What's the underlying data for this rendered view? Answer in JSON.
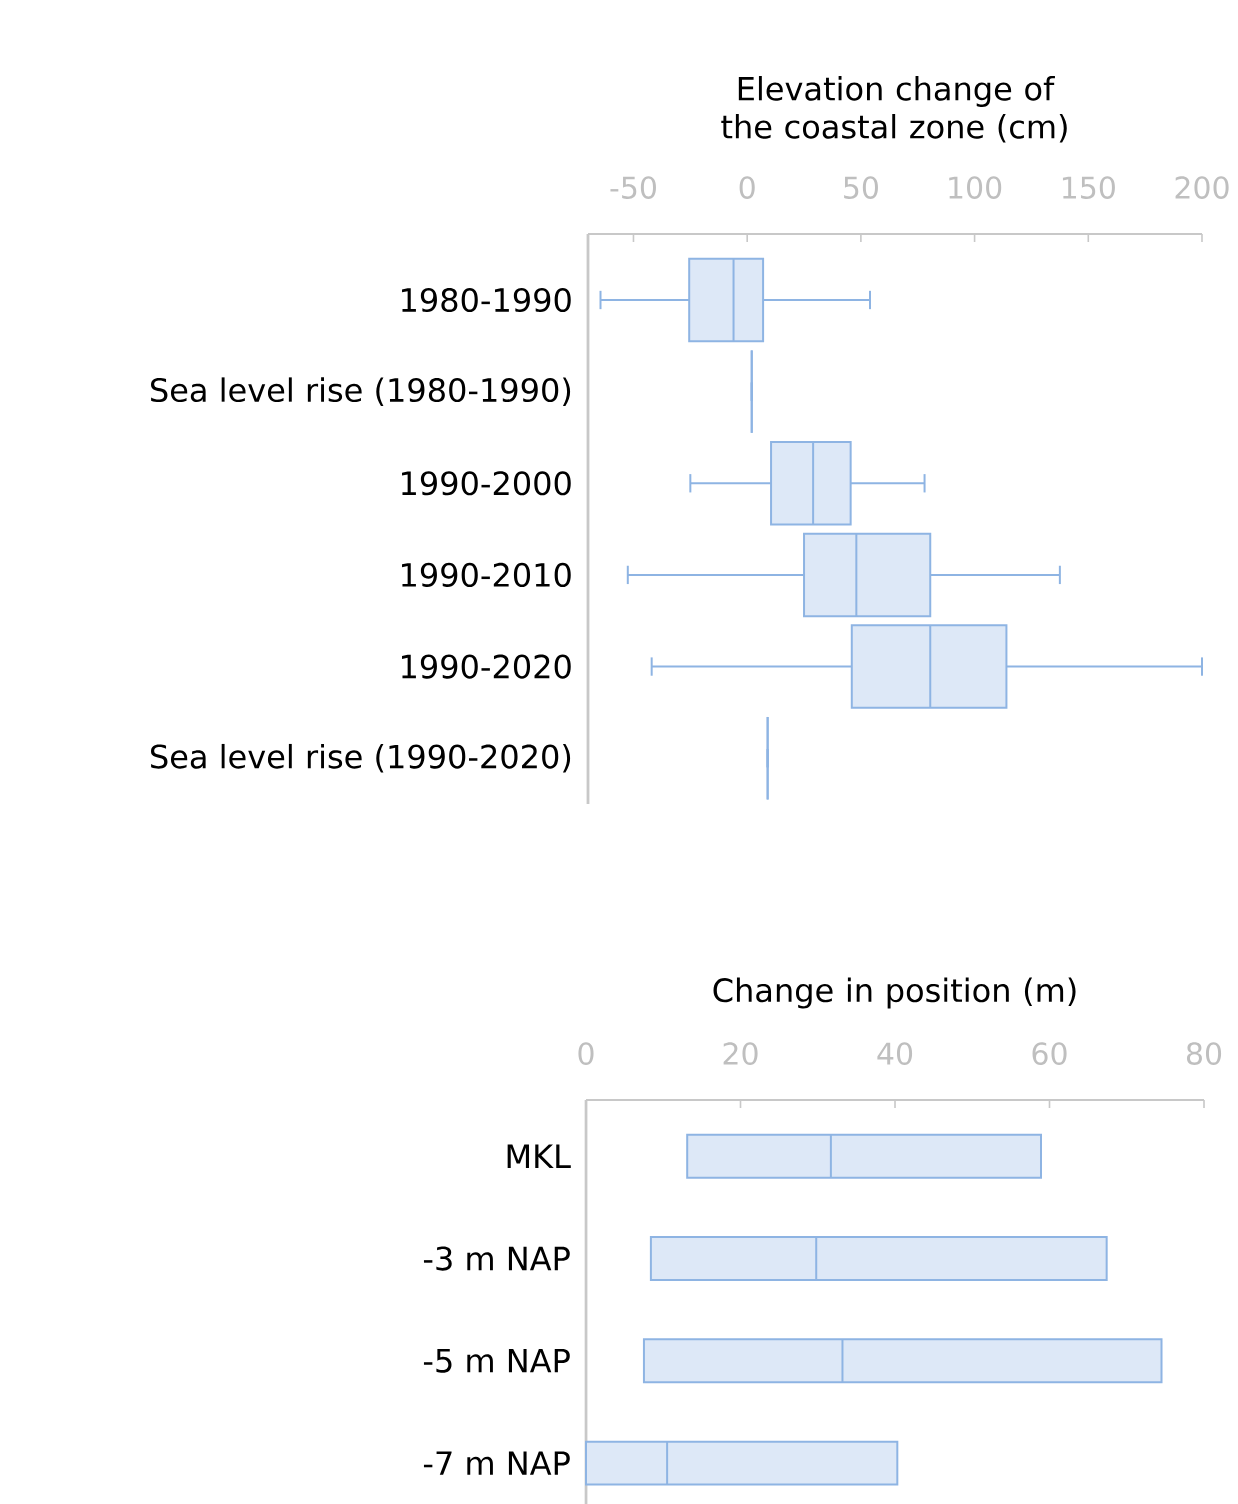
{
  "chart_data": [
    {
      "type": "box",
      "orientation": "horizontal",
      "xlabel": "Elevation change of the coastal zone (cm)",
      "color": "#8eb4e3",
      "xlim": [
        -70,
        200
      ],
      "xticks": [
        -50,
        0,
        50,
        100,
        150,
        200
      ],
      "categories": [
        "1980-1990",
        "Sea level rise (1980-1990)",
        "1990-2000",
        "1990-2010",
        "1990-2020",
        "Sea level rise (1990-2020)"
      ],
      "boxes": [
        {
          "low": -64.5,
          "q1": -25.5,
          "median": -6,
          "q3": 7,
          "high": 54
        },
        {
          "low": 2,
          "q1": 2,
          "median": 2,
          "q3": 2,
          "high": 2
        },
        {
          "low": -25,
          "q1": 10.5,
          "median": 29,
          "q3": 45.5,
          "high": 78
        },
        {
          "low": -52.5,
          "q1": 25,
          "median": 48,
          "q3": 80.5,
          "high": 137.5
        },
        {
          "low": -42,
          "q1": 46,
          "median": 80.5,
          "q3": 114,
          "high": 200
        },
        {
          "low": 9,
          "q1": 9,
          "median": 9,
          "q3": 9,
          "high": 9
        }
      ]
    },
    {
      "type": "box",
      "orientation": "horizontal",
      "xlabel": "Change in position (m)",
      "color": "#8eb4e3",
      "xlim": [
        0,
        80
      ],
      "xticks": [
        0,
        20,
        40,
        60,
        80
      ],
      "categories": [
        "MKL",
        "-3 m NAP",
        "-5 m NAP",
        "-7 m NAP"
      ],
      "boxes": [
        {
          "low": 13.1,
          "q1": 13.1,
          "median": 31.7,
          "q3": 58.9,
          "high": 58.9
        },
        {
          "low": 8.4,
          "q1": 8.4,
          "median": 29.8,
          "q3": 67.4,
          "high": 67.4
        },
        {
          "low": 7.5,
          "q1": 7.5,
          "median": 33.2,
          "q3": 74.5,
          "high": 74.5
        },
        {
          "low": 0,
          "q1": 0,
          "median": 10.5,
          "q3": 40.3,
          "high": 40.3
        }
      ]
    }
  ]
}
